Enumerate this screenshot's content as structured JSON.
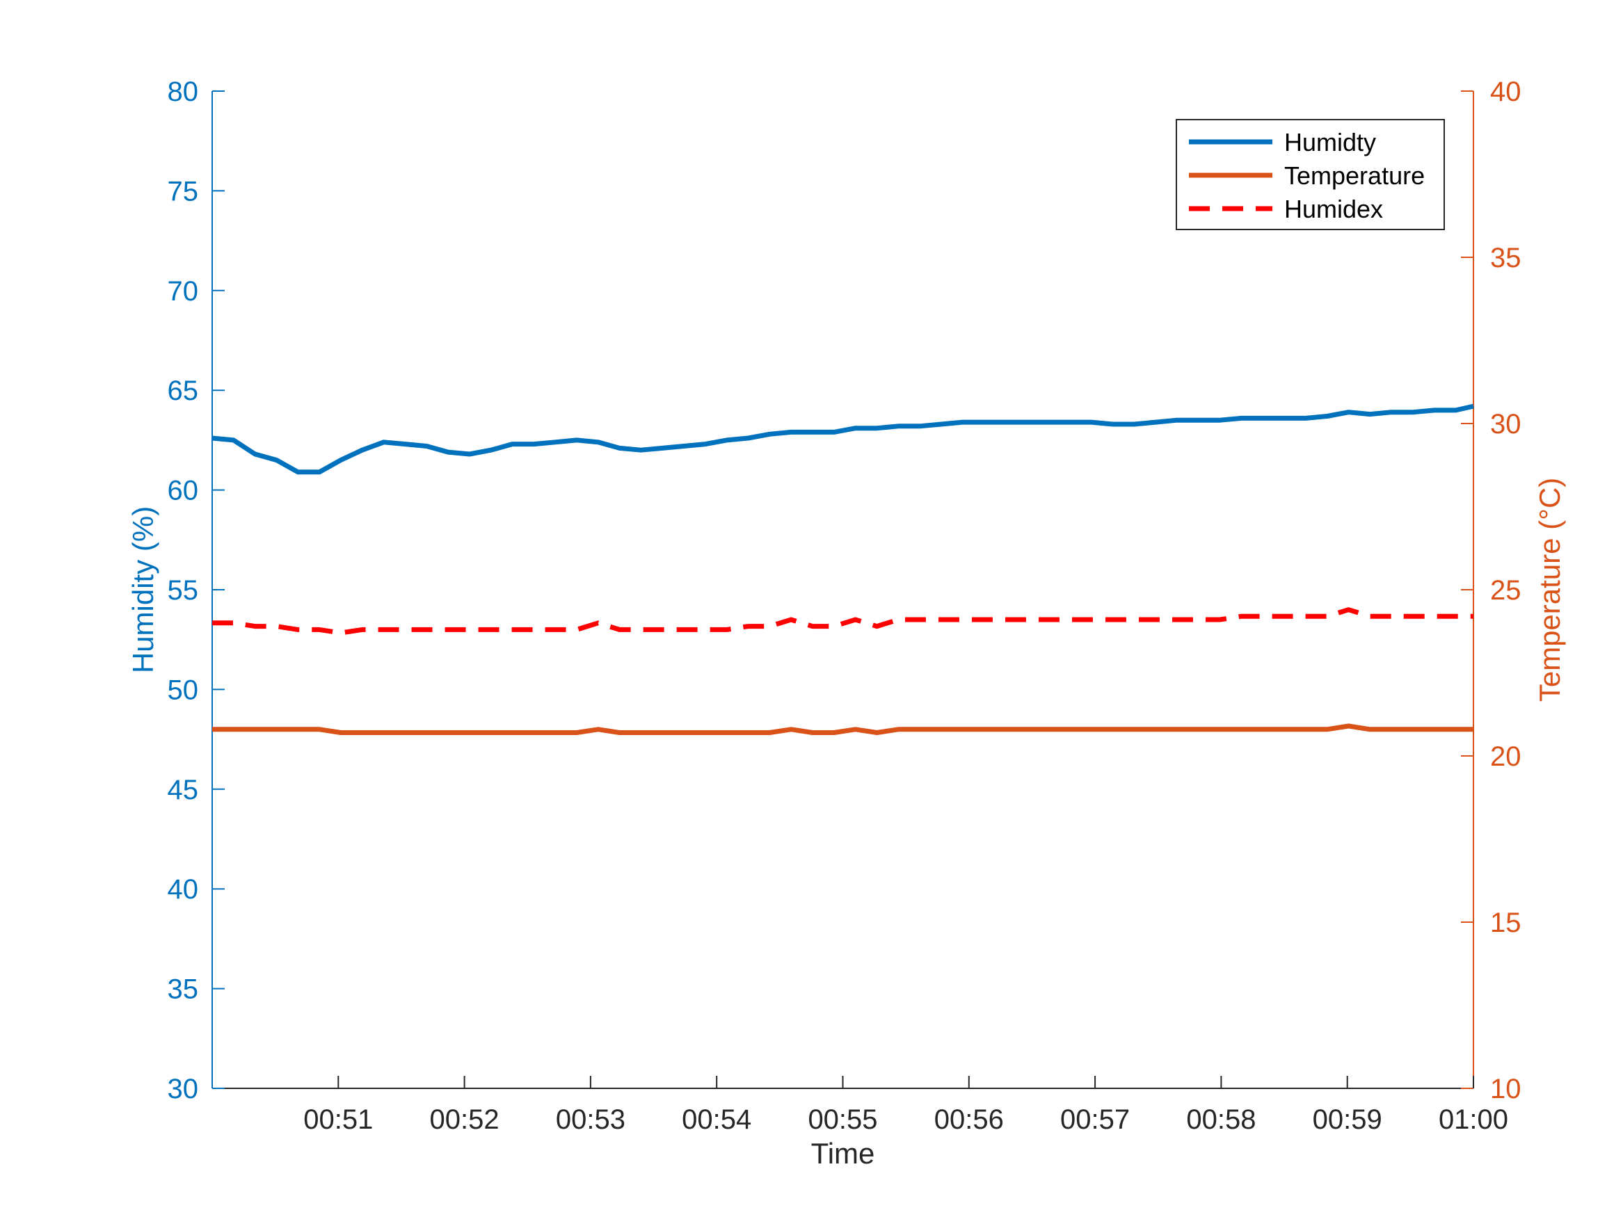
{
  "chart_data": {
    "type": "line",
    "xlabel": "Time",
    "ylabel_left": "Humidity (%)",
    "ylabel_right": "Temperature (°C)",
    "x_ticks": [
      "00:51",
      "00:52",
      "00:53",
      "00:54",
      "00:55",
      "00:56",
      "00:57",
      "00:58",
      "00:59",
      "01:00"
    ],
    "xlim_minutes": [
      50.0,
      60.0
    ],
    "y_left_lim": [
      30,
      80
    ],
    "y_left_ticks": [
      30,
      35,
      40,
      45,
      50,
      55,
      60,
      65,
      70,
      75,
      80
    ],
    "y_right_lim": [
      10,
      40
    ],
    "y_right_ticks": [
      10,
      15,
      20,
      25,
      30,
      35,
      40
    ],
    "grid": false,
    "legend_position": "top-right",
    "colors": {
      "humidity": "#0072BD",
      "temperature": "#D95319",
      "humidex": "#FF0000",
      "axis_text": "#262626"
    },
    "x": [
      50.0,
      50.17,
      50.34,
      50.51,
      50.68,
      50.85,
      51.02,
      51.19,
      51.36,
      51.53,
      51.7,
      51.87,
      52.04,
      52.21,
      52.38,
      52.55,
      52.72,
      52.89,
      53.06,
      53.23,
      53.4,
      53.57,
      53.74,
      53.91,
      54.08,
      54.25,
      54.42,
      54.59,
      54.76,
      54.93,
      55.1,
      55.27,
      55.44,
      55.61,
      55.78,
      55.95,
      56.12,
      56.29,
      56.46,
      56.63,
      56.8,
      56.97,
      57.14,
      57.31,
      57.48,
      57.65,
      57.82,
      57.99,
      58.16,
      58.33,
      58.5,
      58.67,
      58.84,
      59.01,
      59.18,
      59.35,
      59.52,
      59.69,
      59.86,
      60.0
    ],
    "series": [
      {
        "name": "Humidty",
        "axis": "left",
        "style": "solid",
        "values": [
          62.6,
          62.5,
          61.8,
          61.5,
          60.9,
          60.9,
          61.5,
          62.0,
          62.4,
          62.3,
          62.2,
          61.9,
          61.8,
          62.0,
          62.3,
          62.3,
          62.4,
          62.5,
          62.4,
          62.1,
          62.0,
          62.1,
          62.2,
          62.3,
          62.5,
          62.6,
          62.8,
          62.9,
          62.9,
          62.9,
          63.1,
          63.1,
          63.2,
          63.2,
          63.3,
          63.4,
          63.4,
          63.4,
          63.4,
          63.4,
          63.4,
          63.4,
          63.3,
          63.3,
          63.4,
          63.5,
          63.5,
          63.5,
          63.6,
          63.6,
          63.6,
          63.6,
          63.7,
          63.9,
          63.8,
          63.9,
          63.9,
          64.0,
          64.0,
          64.2
        ]
      },
      {
        "name": "Temperature",
        "axis": "right",
        "style": "solid",
        "values": [
          20.8,
          20.8,
          20.8,
          20.8,
          20.8,
          20.8,
          20.7,
          20.7,
          20.7,
          20.7,
          20.7,
          20.7,
          20.7,
          20.7,
          20.7,
          20.7,
          20.7,
          20.7,
          20.8,
          20.7,
          20.7,
          20.7,
          20.7,
          20.7,
          20.7,
          20.7,
          20.7,
          20.8,
          20.7,
          20.7,
          20.8,
          20.7,
          20.8,
          20.8,
          20.8,
          20.8,
          20.8,
          20.8,
          20.8,
          20.8,
          20.8,
          20.8,
          20.8,
          20.8,
          20.8,
          20.8,
          20.8,
          20.8,
          20.8,
          20.8,
          20.8,
          20.8,
          20.8,
          20.9,
          20.8,
          20.8,
          20.8,
          20.8,
          20.8,
          20.8
        ]
      },
      {
        "name": "Humidex",
        "axis": "right",
        "style": "dashed",
        "values": [
          24.0,
          24.0,
          23.9,
          23.9,
          23.8,
          23.8,
          23.7,
          23.8,
          23.8,
          23.8,
          23.8,
          23.8,
          23.8,
          23.8,
          23.8,
          23.8,
          23.8,
          23.8,
          24.0,
          23.8,
          23.8,
          23.8,
          23.8,
          23.8,
          23.8,
          23.9,
          23.9,
          24.1,
          23.9,
          23.9,
          24.1,
          23.9,
          24.1,
          24.1,
          24.1,
          24.1,
          24.1,
          24.1,
          24.1,
          24.1,
          24.1,
          24.1,
          24.1,
          24.1,
          24.1,
          24.1,
          24.1,
          24.1,
          24.2,
          24.2,
          24.2,
          24.2,
          24.2,
          24.4,
          24.2,
          24.2,
          24.2,
          24.2,
          24.2,
          24.2
        ]
      }
    ]
  }
}
